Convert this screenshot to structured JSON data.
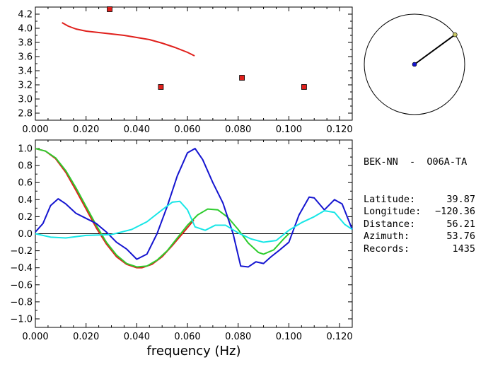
{
  "chart_data": [
    {
      "type": "line",
      "panel": "top",
      "xlim": [
        0.0,
        0.125
      ],
      "ylim": [
        2.7,
        4.3
      ],
      "x_ticks": [
        0.0,
        0.02,
        0.04,
        0.06,
        0.08,
        0.1,
        0.12
      ],
      "x_tick_labels": [
        "0.000",
        "0.020",
        "0.040",
        "0.060",
        "0.080",
        "0.100",
        "0.120"
      ],
      "y_ticks": [
        2.8,
        3.0,
        3.2,
        3.4,
        3.6,
        3.8,
        4.0,
        4.2
      ],
      "y_tick_labels": [
        "2.8",
        "3.0",
        "3.2",
        "3.4",
        "3.6",
        "3.8",
        "4.0",
        "4.2"
      ],
      "series": [
        {
          "color": "#e0201c",
          "style": "line",
          "x": [
            0.0105,
            0.013,
            0.016,
            0.02,
            0.025,
            0.03,
            0.035,
            0.04,
            0.045,
            0.05,
            0.055,
            0.06,
            0.0628
          ],
          "y": [
            4.08,
            4.03,
            3.99,
            3.96,
            3.94,
            3.92,
            3.9,
            3.87,
            3.84,
            3.79,
            3.73,
            3.66,
            3.61
          ]
        },
        {
          "color": "#e0201c",
          "style": "markers",
          "x": [
            0.0293,
            0.0495,
            0.0815,
            0.106
          ],
          "y": [
            4.27,
            3.17,
            3.3,
            3.17
          ]
        }
      ]
    },
    {
      "type": "line",
      "panel": "bottom",
      "xlim": [
        0.0,
        0.125
      ],
      "ylim": [
        -1.1,
        1.1
      ],
      "xlabel": "frequency (Hz)",
      "x_ticks": [
        0.0,
        0.02,
        0.04,
        0.06,
        0.08,
        0.1,
        0.12
      ],
      "x_tick_labels": [
        "0.000",
        "0.020",
        "0.040",
        "0.060",
        "0.080",
        "0.100",
        "0.120"
      ],
      "y_ticks": [
        1.0,
        0.8,
        0.6,
        0.4,
        0.2,
        0.0,
        -0.2,
        -0.4,
        -0.6,
        -0.8,
        -1.0
      ],
      "y_tick_labels": [
        "1.0",
        "0.8",
        "0.6",
        "0.4",
        "0.2",
        "0.0",
        "−0.2",
        "−0.4",
        "−0.6",
        "−0.8",
        "−1.0"
      ],
      "zero_line": true,
      "series": [
        {
          "color": "#e0201c",
          "x": [
            0.0,
            0.004,
            0.008,
            0.012,
            0.016,
            0.02,
            0.024,
            0.028,
            0.032,
            0.036,
            0.04,
            0.042,
            0.046,
            0.05,
            0.054,
            0.058,
            0.0625
          ],
          "y": [
            1.0,
            0.97,
            0.88,
            0.72,
            0.51,
            0.29,
            0.07,
            -0.12,
            -0.27,
            -0.36,
            -0.4,
            -0.4,
            -0.36,
            -0.27,
            -0.14,
            0.0,
            0.16
          ]
        },
        {
          "color": "#2ecc2e",
          "x": [
            0.0,
            0.004,
            0.008,
            0.012,
            0.016,
            0.02,
            0.024,
            0.028,
            0.032,
            0.036,
            0.04,
            0.044,
            0.048,
            0.052,
            0.056,
            0.06,
            0.064,
            0.068,
            0.072,
            0.076,
            0.08,
            0.084,
            0.088,
            0.09,
            0.094,
            0.098,
            0.1
          ],
          "y": [
            1.0,
            0.97,
            0.89,
            0.74,
            0.54,
            0.32,
            0.1,
            -0.1,
            -0.25,
            -0.35,
            -0.39,
            -0.38,
            -0.31,
            -0.2,
            -0.05,
            0.1,
            0.22,
            0.29,
            0.28,
            0.19,
            0.05,
            -0.11,
            -0.22,
            -0.24,
            -0.19,
            -0.06,
            0.0
          ]
        },
        {
          "color": "#1515d0",
          "x": [
            0.0,
            0.003,
            0.006,
            0.009,
            0.012,
            0.016,
            0.02,
            0.024,
            0.028,
            0.032,
            0.036,
            0.04,
            0.044,
            0.048,
            0.052,
            0.056,
            0.06,
            0.063,
            0.066,
            0.07,
            0.074,
            0.078,
            0.081,
            0.084,
            0.087,
            0.09,
            0.093,
            0.096,
            0.1,
            0.104,
            0.108,
            0.11,
            0.114,
            0.118,
            0.121,
            0.125
          ],
          "y": [
            0.02,
            0.12,
            0.33,
            0.41,
            0.35,
            0.24,
            0.18,
            0.12,
            0.02,
            -0.1,
            -0.18,
            -0.3,
            -0.24,
            0.0,
            0.32,
            0.68,
            0.95,
            1.0,
            0.87,
            0.6,
            0.36,
            0.0,
            -0.38,
            -0.39,
            -0.33,
            -0.35,
            -0.27,
            -0.2,
            -0.1,
            0.22,
            0.43,
            0.42,
            0.28,
            0.4,
            0.35,
            0.05
          ]
        },
        {
          "color": "#17e6e6",
          "x": [
            0.0,
            0.006,
            0.012,
            0.02,
            0.03,
            0.038,
            0.044,
            0.05,
            0.054,
            0.057,
            0.06,
            0.063,
            0.067,
            0.071,
            0.075,
            0.08,
            0.085,
            0.09,
            0.095,
            0.1,
            0.105,
            0.11,
            0.114,
            0.118,
            0.122,
            0.125
          ],
          "y": [
            0.0,
            -0.04,
            -0.05,
            -0.02,
            -0.01,
            0.05,
            0.14,
            0.28,
            0.37,
            0.38,
            0.28,
            0.08,
            0.04,
            0.1,
            0.1,
            0.01,
            -0.06,
            -0.1,
            -0.08,
            0.04,
            0.13,
            0.2,
            0.27,
            0.25,
            0.11,
            0.05
          ]
        }
      ]
    }
  ],
  "polar": {
    "azimuth_deg": 53.76,
    "line_color": "#000000",
    "center_dot_color": "#1515d0",
    "end_dot_color": "#c8c864"
  },
  "info": {
    "station": "BEK-NN  -  O06A-TA",
    "lines": [
      {
        "label": "Latitude:",
        "value": "39.87"
      },
      {
        "label": "Longitude:",
        "value": "−120.36"
      },
      {
        "label": "Distance:",
        "value": "56.21"
      },
      {
        "label": "Azimuth:",
        "value": "53.76"
      },
      {
        "label": "Records:",
        "value": "1435"
      }
    ]
  }
}
